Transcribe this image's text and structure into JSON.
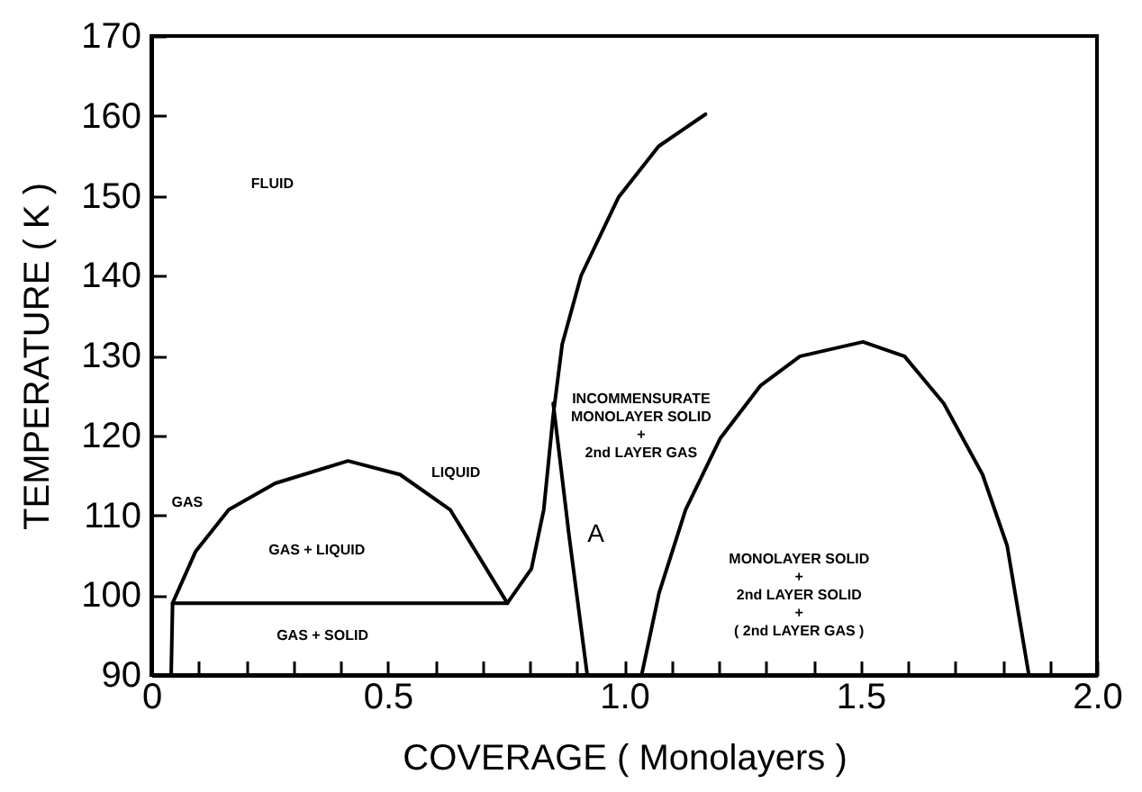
{
  "chart_data": {
    "type": "line",
    "xlabel": "COVERAGE ( Monolayers )",
    "ylabel": "TEMPERATURE ( K )",
    "xlim": [
      0,
      2
    ],
    "ylim": [
      90,
      170
    ],
    "xticks": [
      0,
      {
        "value": 0.1,
        "label": null
      },
      {
        "value": 0.2,
        "label": null
      },
      {
        "value": 0.3,
        "label": null
      },
      {
        "value": 0.4,
        "label": null
      },
      0.5,
      {
        "value": 0.6,
        "label": null
      },
      {
        "value": 0.7,
        "label": null
      },
      {
        "value": 0.8,
        "label": null
      },
      {
        "value": 0.9,
        "label": null
      },
      {
        "value": 1,
        "label": "1.0"
      },
      {
        "value": 1.1,
        "label": null
      },
      {
        "value": 1.2,
        "label": null
      },
      {
        "value": 1.3,
        "label": null
      },
      {
        "value": 1.4,
        "label": null
      },
      1.5,
      {
        "value": 1.6,
        "label": null
      },
      {
        "value": 1.7,
        "label": null
      },
      {
        "value": 1.8,
        "label": null
      },
      {
        "value": 1.9,
        "label": null
      },
      {
        "value": 2,
        "label": "2.0"
      }
    ],
    "yticks": [
      90,
      100,
      110,
      120,
      130,
      140,
      150,
      160,
      170
    ],
    "grid": false,
    "marker": "none",
    "line_style": "solid",
    "series": [
      {
        "color": "#000000",
        "x": [
          0.042,
          0.045,
          0.094,
          0.164,
          0.262,
          0.416,
          0.526,
          0.632,
          0.753
        ],
        "values": [
          90,
          99,
          105.5,
          110.7,
          114,
          116.8,
          115.1,
          110.7,
          99
        ]
      },
      {
        "color": "#000000",
        "x": [
          0.045,
          0.753
        ],
        "values": [
          99,
          99
        ]
      },
      {
        "color": "#000000",
        "x": [
          0.753,
          0.804,
          0.83,
          0.85,
          0.869,
          0.909,
          0.988,
          1.073,
          1.172
        ],
        "values": [
          99,
          103.3,
          110.7,
          122.5,
          131.4,
          140,
          149.8,
          156.2,
          160.2
        ]
      },
      {
        "color": "#000000",
        "x": [
          0.85,
          0.877,
          0.883,
          0.922
        ],
        "values": [
          124,
          110.7,
          107.7,
          90
        ]
      },
      {
        "color": "#000000",
        "x": [
          1.037,
          1.074,
          1.13,
          1.203,
          1.288,
          1.372,
          1.505,
          1.593,
          1.676,
          1.758,
          1.81,
          1.856
        ],
        "values": [
          90,
          100.3,
          110.7,
          119.6,
          126.2,
          129.9,
          131.7,
          129.9,
          124,
          115.1,
          106.2,
          90
        ]
      }
    ],
    "annotations": [
      "FLUID",
      "GAS",
      "GAS + LIQUID",
      "GAS + SOLID",
      "LIQUID",
      "INCOMMENSURATE\nMONOLAYER SOLID\n+\n2nd LAYER GAS",
      "A",
      "MONOLAYER SOLID\n+\n2nd LAYER SOLID\n+\n( 2nd LAYER GAS )"
    ]
  }
}
